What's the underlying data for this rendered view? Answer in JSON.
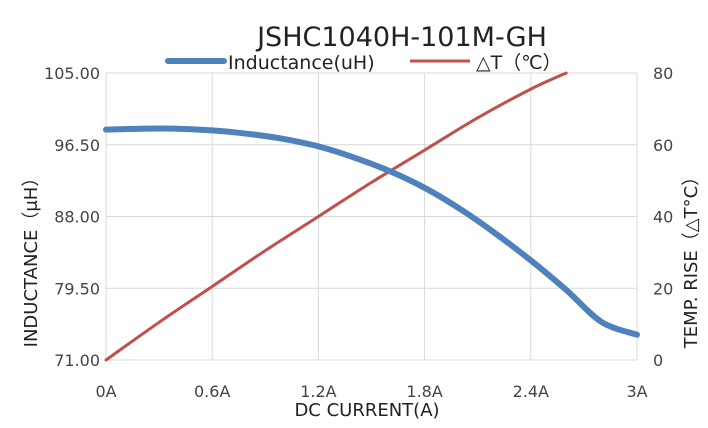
{
  "chart_data": {
    "type": "line",
    "title": "JSHC1040H-101M-GH",
    "xlabel": "DC  CURRENT(A)",
    "ylabel_left": "INDUCTANCE（μH）",
    "ylabel_right": "TEMP. RISE（△T°C）",
    "x_tick_labels": [
      "0A",
      "0.6A",
      "1.2A",
      "1.8A",
      "2.4A",
      "3A"
    ],
    "x_ticks": [
      0,
      0.6,
      1.2,
      1.8,
      2.4,
      3.0
    ],
    "xlim": [
      0,
      3
    ],
    "ylim_left": [
      71,
      105
    ],
    "ylim_right": [
      0,
      80
    ],
    "y_left_ticks": [
      71,
      79.5,
      88,
      96.5,
      105
    ],
    "y_left_tick_labels": [
      "71.00",
      "79.50",
      "88.00",
      "96.50",
      "105.00"
    ],
    "y_right_ticks": [
      0,
      20,
      40,
      60,
      80
    ],
    "y_right_tick_labels": [
      "0",
      "20",
      "40",
      "60",
      "80"
    ],
    "grid": true,
    "legend_position": "top-center",
    "series": [
      {
        "name": "Inductance(uH)",
        "axis": "left",
        "color": "#4f81bd",
        "x": [
          0,
          0.2,
          0.4,
          0.6,
          0.8,
          1.0,
          1.2,
          1.4,
          1.6,
          1.8,
          2.0,
          2.2,
          2.4,
          2.6,
          2.8,
          3.0
        ],
        "y": [
          98.3,
          98.4,
          98.4,
          98.2,
          97.8,
          97.2,
          96.3,
          95.0,
          93.4,
          91.4,
          88.9,
          86.0,
          82.8,
          79.3,
          75.5,
          74.0
        ]
      },
      {
        "name": "△T（℃）",
        "axis": "right",
        "color": "#c0504d",
        "x": [
          0,
          0.3,
          0.6,
          0.9,
          1.2,
          1.5,
          1.8,
          2.1,
          2.4,
          2.6
        ],
        "y": [
          0,
          10.5,
          20.5,
          30.5,
          40.0,
          49.5,
          58.5,
          67.5,
          75.5,
          80.0
        ]
      }
    ]
  }
}
